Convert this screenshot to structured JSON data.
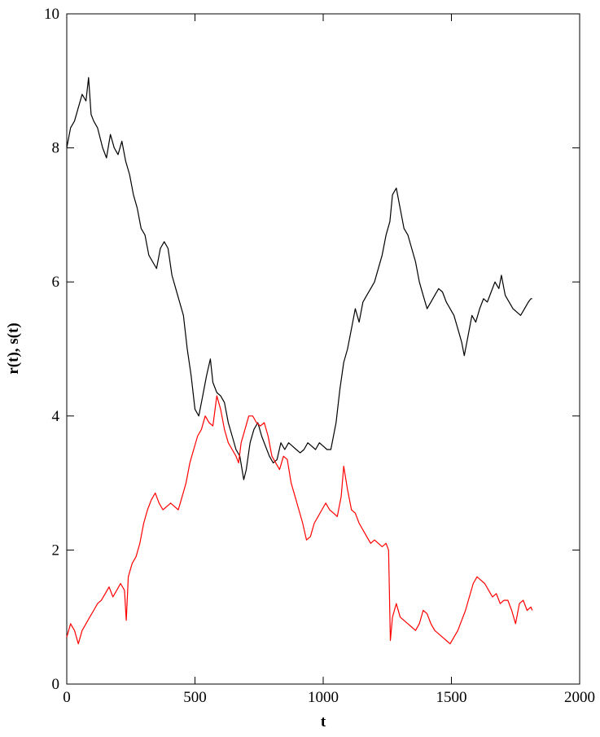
{
  "chart_data": {
    "type": "line",
    "title": "",
    "xlabel": "t",
    "ylabel": "r(t), s(t)",
    "xlim": [
      0,
      2000
    ],
    "ylim": [
      0,
      10
    ],
    "xticks": [
      0,
      500,
      1000,
      1500,
      2000
    ],
    "yticks": [
      0,
      2,
      4,
      6,
      8,
      10
    ],
    "grid": false,
    "legend": "none",
    "series": [
      {
        "color": "#000000",
        "x": [
          0,
          15,
          30,
          45,
          60,
          75,
          85,
          95,
          105,
          120,
          140,
          155,
          170,
          185,
          200,
          215,
          230,
          245,
          260,
          275,
          290,
          305,
          320,
          335,
          350,
          365,
          380,
          395,
          410,
          425,
          440,
          455,
          470,
          485,
          500,
          515,
          530,
          545,
          560,
          570,
          585,
          600,
          615,
          630,
          645,
          660,
          675,
          690,
          700,
          715,
          730,
          745,
          760,
          775,
          790,
          805,
          820,
          835,
          850,
          865,
          880,
          895,
          910,
          925,
          940,
          955,
          970,
          985,
          1000,
          1015,
          1030,
          1040,
          1050,
          1065,
          1080,
          1095,
          1110,
          1125,
          1140,
          1155,
          1170,
          1185,
          1200,
          1215,
          1230,
          1245,
          1260,
          1270,
          1285,
          1300,
          1315,
          1330,
          1345,
          1360,
          1375,
          1390,
          1405,
          1420,
          1435,
          1450,
          1465,
          1480,
          1495,
          1510,
          1525,
          1540,
          1550,
          1565,
          1580,
          1595,
          1610,
          1625,
          1640,
          1655,
          1670,
          1685,
          1695,
          1710,
          1725,
          1740,
          1755,
          1770,
          1785,
          1800,
          1810,
          1815
        ],
        "y": [
          8.0,
          8.3,
          8.4,
          8.6,
          8.8,
          8.7,
          9.05,
          8.5,
          8.4,
          8.3,
          8.0,
          7.85,
          8.2,
          8.0,
          7.9,
          8.1,
          7.8,
          7.6,
          7.3,
          7.1,
          6.8,
          6.7,
          6.4,
          6.3,
          6.2,
          6.5,
          6.6,
          6.5,
          6.1,
          5.9,
          5.7,
          5.5,
          5.0,
          4.6,
          4.1,
          4.0,
          4.3,
          4.6,
          4.85,
          4.5,
          4.35,
          4.3,
          4.2,
          3.9,
          3.7,
          3.5,
          3.4,
          3.05,
          3.2,
          3.6,
          3.8,
          3.9,
          3.7,
          3.55,
          3.4,
          3.3,
          3.35,
          3.6,
          3.5,
          3.6,
          3.55,
          3.5,
          3.45,
          3.5,
          3.6,
          3.55,
          3.5,
          3.6,
          3.55,
          3.5,
          3.5,
          3.7,
          3.9,
          4.4,
          4.8,
          5.0,
          5.3,
          5.6,
          5.4,
          5.7,
          5.8,
          5.9,
          6.0,
          6.2,
          6.4,
          6.7,
          6.9,
          7.3,
          7.4,
          7.1,
          6.8,
          6.7,
          6.5,
          6.3,
          6.0,
          5.8,
          5.6,
          5.7,
          5.8,
          5.9,
          5.85,
          5.7,
          5.6,
          5.5,
          5.3,
          5.1,
          4.9,
          5.2,
          5.5,
          5.4,
          5.6,
          5.75,
          5.7,
          5.85,
          6.0,
          5.9,
          6.1,
          5.8,
          5.7,
          5.6,
          5.55,
          5.5,
          5.6,
          5.7,
          5.75,
          5.75
        ]
      },
      {
        "color": "#ff0000",
        "x": [
          0,
          15,
          30,
          45,
          60,
          75,
          90,
          105,
          120,
          135,
          150,
          165,
          180,
          195,
          210,
          225,
          232,
          240,
          255,
          270,
          285,
          300,
          315,
          330,
          345,
          360,
          375,
          390,
          405,
          420,
          435,
          450,
          465,
          480,
          495,
          510,
          525,
          540,
          555,
          570,
          585,
          600,
          615,
          630,
          645,
          660,
          670,
          680,
          695,
          710,
          725,
          740,
          755,
          770,
          785,
          800,
          815,
          830,
          845,
          860,
          875,
          890,
          905,
          920,
          935,
          950,
          965,
          980,
          995,
          1010,
          1025,
          1040,
          1055,
          1070,
          1080,
          1095,
          1110,
          1125,
          1140,
          1155,
          1170,
          1185,
          1200,
          1215,
          1230,
          1245,
          1255,
          1262,
          1270,
          1285,
          1300,
          1315,
          1330,
          1345,
          1360,
          1375,
          1390,
          1405,
          1420,
          1435,
          1450,
          1465,
          1480,
          1495,
          1510,
          1525,
          1540,
          1555,
          1570,
          1585,
          1600,
          1615,
          1630,
          1645,
          1660,
          1675,
          1690,
          1705,
          1720,
          1735,
          1750,
          1765,
          1780,
          1795,
          1810,
          1815
        ],
        "y": [
          0.7,
          0.9,
          0.8,
          0.6,
          0.8,
          0.9,
          1.0,
          1.1,
          1.2,
          1.25,
          1.35,
          1.45,
          1.3,
          1.4,
          1.5,
          1.4,
          0.95,
          1.6,
          1.8,
          1.9,
          2.1,
          2.4,
          2.6,
          2.75,
          2.85,
          2.7,
          2.6,
          2.65,
          2.7,
          2.65,
          2.6,
          2.8,
          3.0,
          3.3,
          3.5,
          3.7,
          3.8,
          4.0,
          3.9,
          3.85,
          4.3,
          4.1,
          3.8,
          3.6,
          3.5,
          3.4,
          3.3,
          3.6,
          3.8,
          4.0,
          4.0,
          3.9,
          3.85,
          3.9,
          3.7,
          3.4,
          3.3,
          3.2,
          3.4,
          3.35,
          3.0,
          2.8,
          2.6,
          2.4,
          2.15,
          2.2,
          2.4,
          2.5,
          2.6,
          2.7,
          2.6,
          2.55,
          2.5,
          2.8,
          3.25,
          2.9,
          2.6,
          2.55,
          2.4,
          2.3,
          2.2,
          2.1,
          2.15,
          2.1,
          2.05,
          2.1,
          2.0,
          0.65,
          1.0,
          1.2,
          1.0,
          0.95,
          0.9,
          0.85,
          0.8,
          0.9,
          1.1,
          1.05,
          0.9,
          0.8,
          0.75,
          0.7,
          0.65,
          0.6,
          0.7,
          0.8,
          0.95,
          1.1,
          1.3,
          1.5,
          1.6,
          1.55,
          1.5,
          1.4,
          1.3,
          1.35,
          1.2,
          1.25,
          1.25,
          1.1,
          0.9,
          1.2,
          1.25,
          1.1,
          1.15,
          1.1
        ]
      }
    ]
  }
}
